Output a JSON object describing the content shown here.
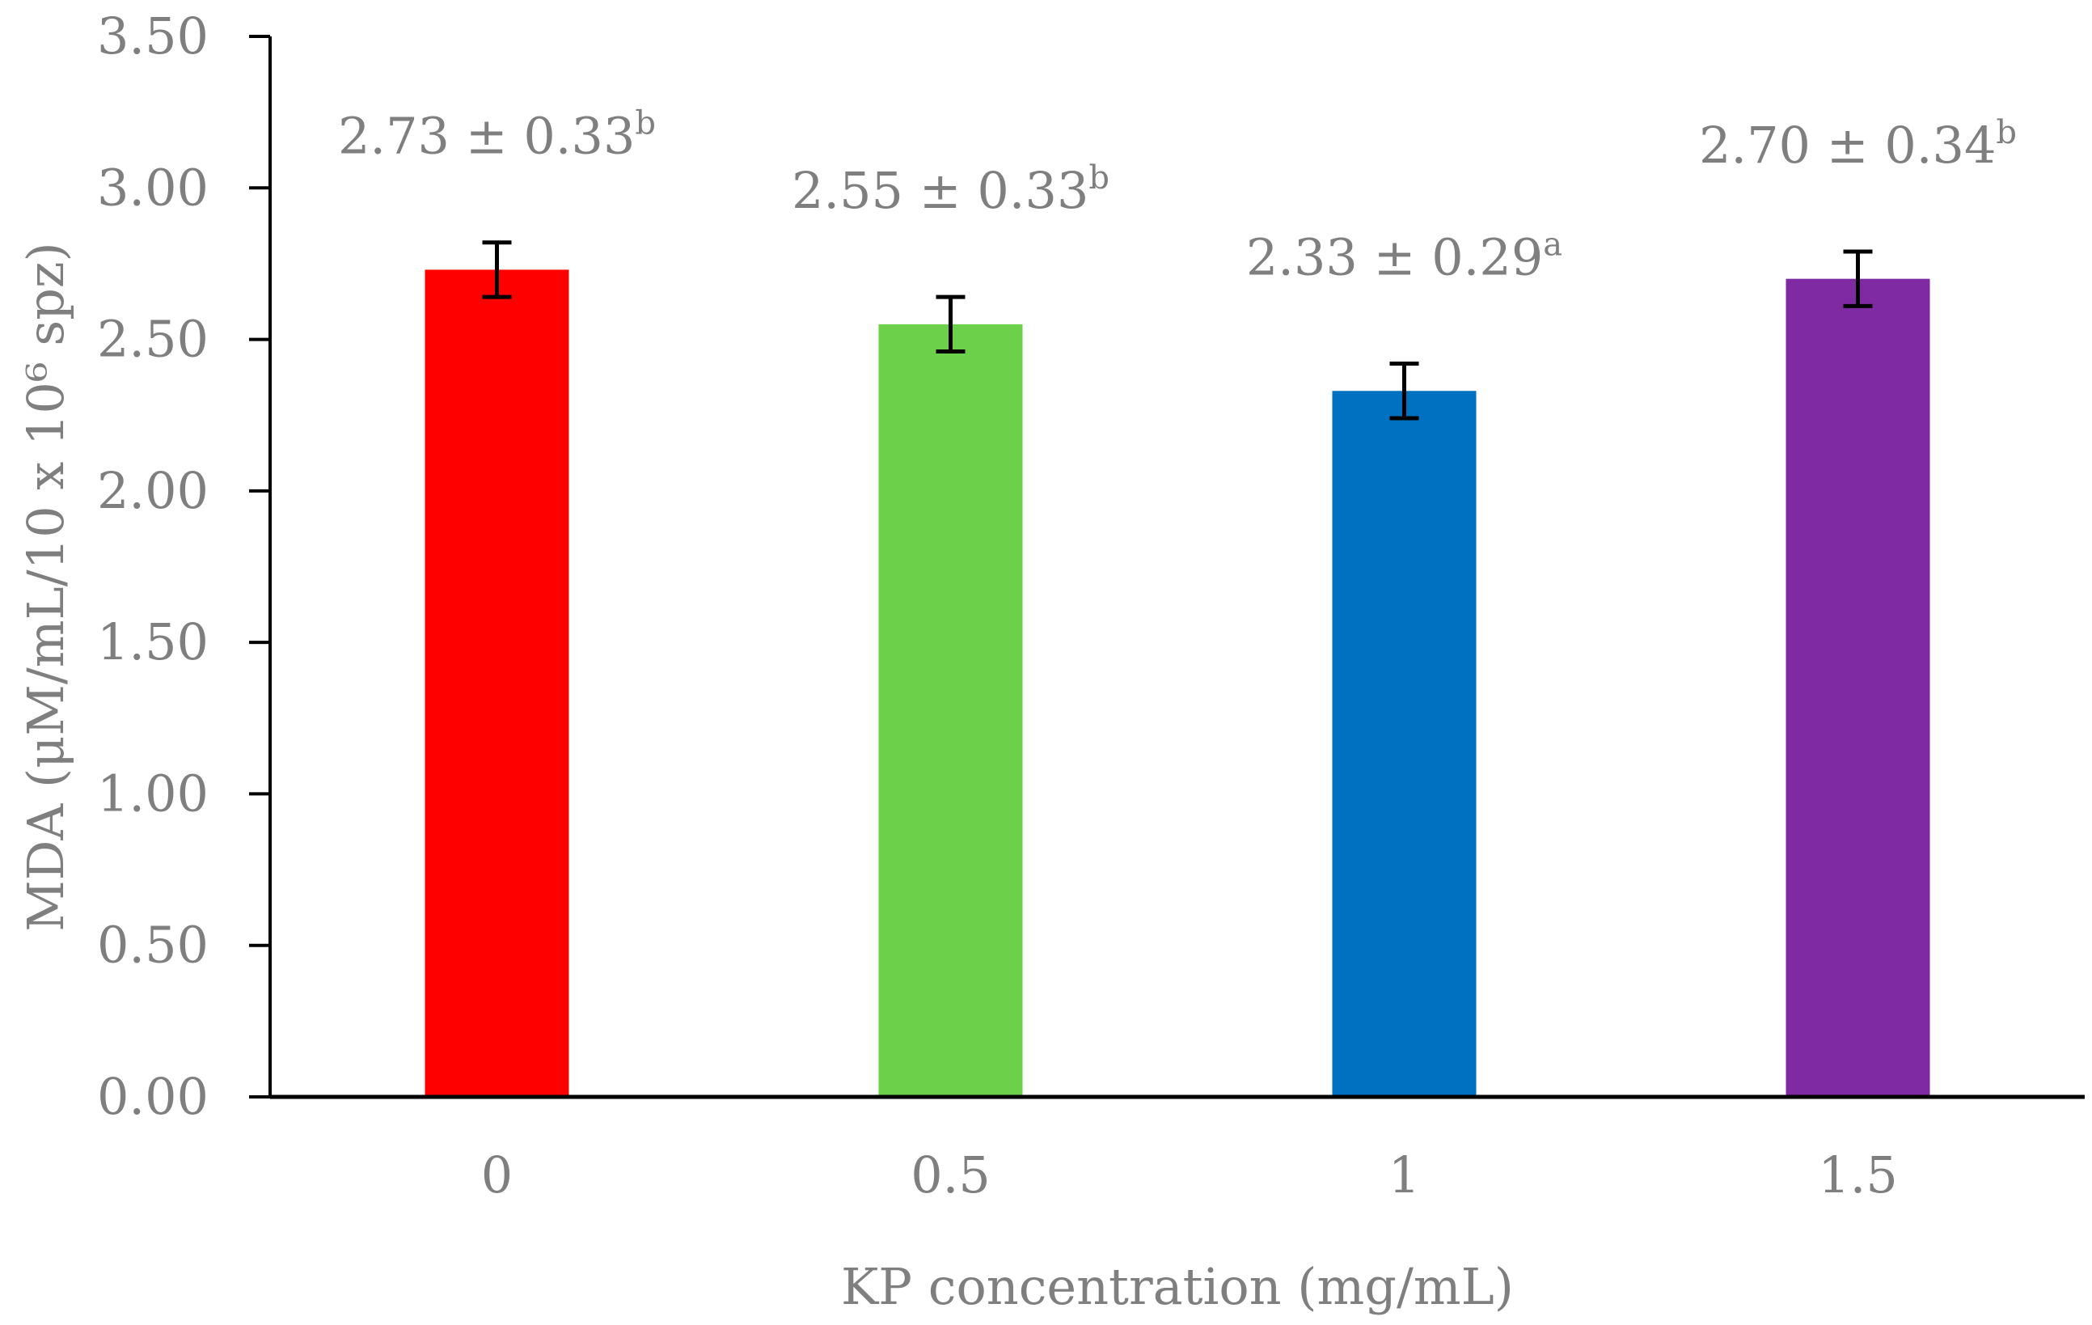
{
  "chart_data": {
    "type": "bar",
    "title": "",
    "xlabel": "KP concentration (mg/mL)",
    "ylabel": "MDA (μM/mL/10 x 10⁶ spz)",
    "ylim": [
      0,
      3.5
    ],
    "yticks": [
      "0.00",
      "0.50",
      "1.00",
      "1.50",
      "2.00",
      "2.50",
      "3.00",
      "3.50"
    ],
    "ytick_values": [
      0,
      0.5,
      1.0,
      1.5,
      2.0,
      2.5,
      3.0,
      3.5
    ],
    "categories": [
      "0",
      "0.5",
      "1",
      "1.5"
    ],
    "values": [
      2.73,
      2.55,
      2.33,
      2.7
    ],
    "error_bars": [
      0.09,
      0.09,
      0.09,
      0.09
    ],
    "colors": [
      "#ff0000",
      "#6dd04a",
      "#0070c0",
      "#7f2aa2"
    ],
    "data_labels": [
      {
        "text": "2.73 ± 0.33",
        "sup": "b"
      },
      {
        "text": "2.55 ± 0.33",
        "sup": "b"
      },
      {
        "text": "2.33 ± 0.29",
        "sup": "a"
      },
      {
        "text": "2.70 ± 0.34",
        "sup": "b"
      }
    ],
    "grid": false,
    "legend": "none"
  },
  "style": {
    "text_color": "#7f7f7f",
    "axis_color": "#000000"
  }
}
